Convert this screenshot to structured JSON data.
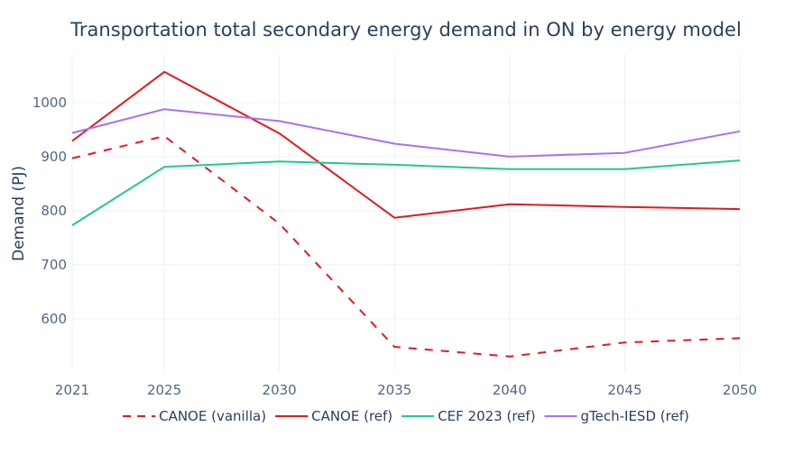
{
  "chart_data": {
    "type": "line",
    "title": "Transportation total secondary energy demand in ON by energy model",
    "xlabel": "",
    "ylabel": "Demand (PJ)",
    "x": [
      2021,
      2025,
      2030,
      2035,
      2040,
      2045,
      2050
    ],
    "x_ticks": [
      "2021",
      "2025",
      "2030",
      "2035",
      "2040",
      "2045",
      "2050"
    ],
    "y_ticks": [
      "600",
      "700",
      "800",
      "900",
      "1000"
    ],
    "xlim": [
      2021,
      2050
    ],
    "ylim": [
      503,
      1090
    ],
    "grid": true,
    "legend_position": "bottom",
    "series": [
      {
        "name": "CANOE (vanilla)",
        "color": "#e31a1c",
        "dash": "dashed",
        "values": [
          897,
          938,
          776,
          548,
          530,
          556,
          564
        ]
      },
      {
        "name": "CANOE (ref)",
        "color": "#e31a1c",
        "dash": "solid",
        "values": [
          929,
          1057,
          943,
          787,
          812,
          807,
          803
        ]
      },
      {
        "name": "CEF 2023 (ref)",
        "color": "#1fc992",
        "dash": "solid",
        "values": [
          773,
          881,
          891,
          885,
          877,
          877,
          893
        ]
      },
      {
        "name": "gTech-IESD (ref)",
        "color": "#ab6ff5",
        "dash": "solid",
        "values": [
          944,
          988,
          966,
          924,
          900,
          907,
          947
        ]
      }
    ]
  }
}
